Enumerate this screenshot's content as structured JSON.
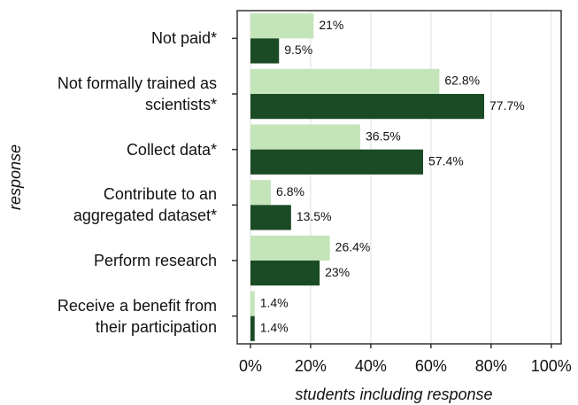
{
  "chart_data": {
    "type": "bar",
    "orientation": "horizontal",
    "x_label": "students including response",
    "y_label": "response",
    "categories": [
      "Not paid*",
      "Not formally trained as\nscientists*",
      "Collect data*",
      "Contribute to an\naggregated dataset*",
      "Perform research",
      "Receive a benefit from\ntheir participation"
    ],
    "series": [
      {
        "color": "#c4e4b9",
        "values": [
          21,
          62.8,
          36.5,
          6.8,
          26.4,
          1.4
        ],
        "value_labels": [
          "21%",
          "62.8%",
          "36.5%",
          "6.8%",
          "26.4%",
          "1.4%"
        ]
      },
      {
        "color": "#1b4b24",
        "values": [
          9.5,
          77.7,
          57.4,
          13.5,
          23,
          1.4
        ],
        "value_labels": [
          "9.5%",
          "77.7%",
          "57.4%",
          "13.5%",
          "23%",
          "1.4%"
        ]
      }
    ],
    "xlim": [
      -4.4,
      103.3
    ],
    "xticks": [
      {
        "value": 0,
        "label": "0%"
      },
      {
        "value": 20,
        "label": "20%"
      },
      {
        "value": 40,
        "label": "40%"
      },
      {
        "value": 60,
        "label": "60%"
      },
      {
        "value": 80,
        "label": "80%"
      },
      {
        "value": 100,
        "label": "100%"
      }
    ],
    "grid": true
  }
}
